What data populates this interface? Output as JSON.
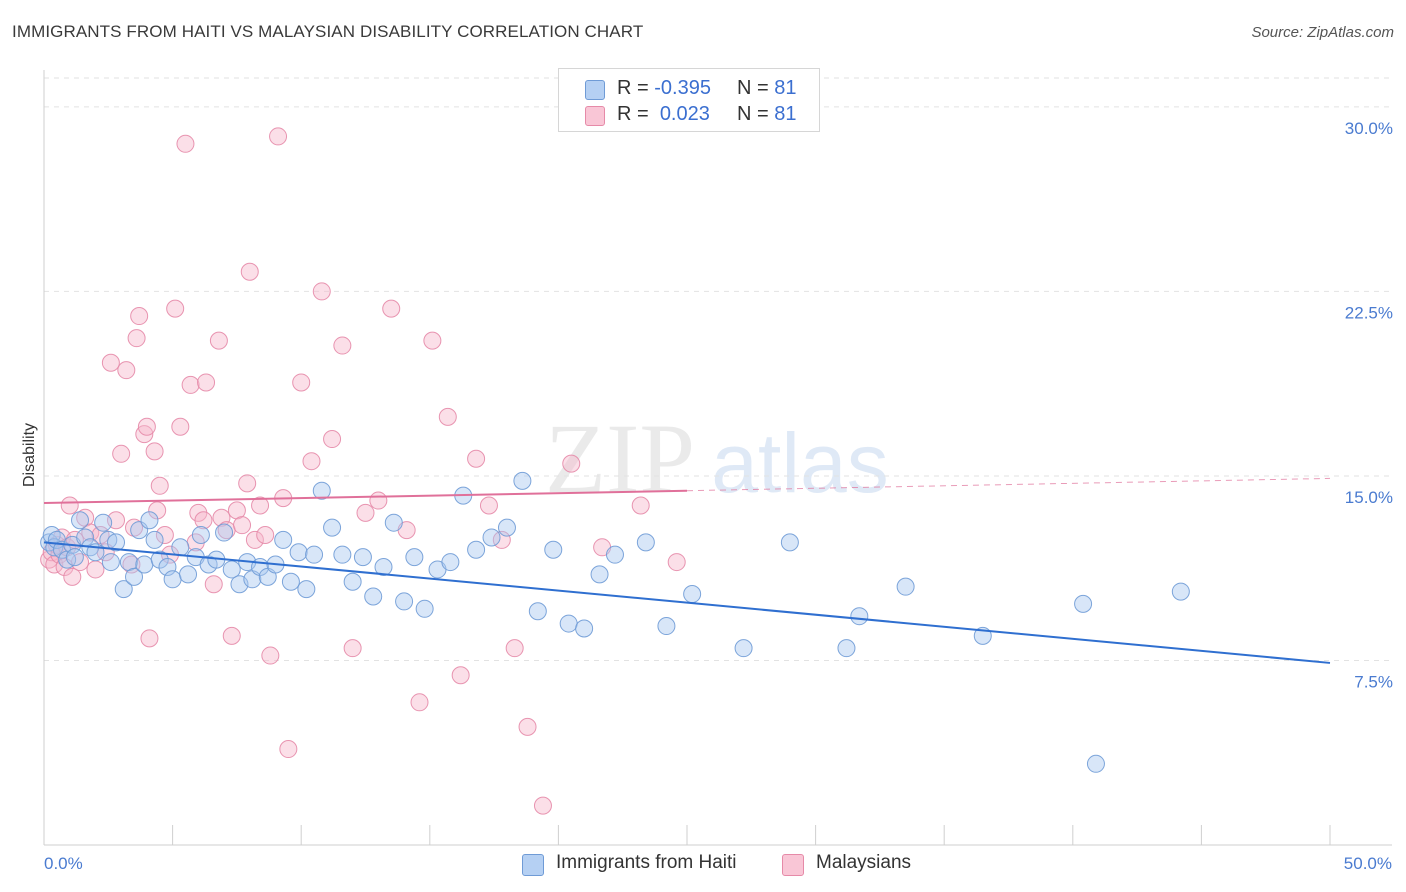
{
  "title": "IMMIGRANTS FROM HAITI VS MALAYSIAN DISABILITY CORRELATION CHART",
  "source": "Source: ZipAtlas.com",
  "watermark": {
    "zip": "ZIP",
    "atlas": "atlas"
  },
  "colors": {
    "haiti_fill": "#a8c8f0",
    "haiti_stroke": "#6f9bd6",
    "haiti_line": "#2f6fd0",
    "malay_fill": "#f6b8cb",
    "malay_stroke": "#e68aa8",
    "malay_line": "#e0709a",
    "grid": "#e2e2e2",
    "tick_text": "#4a7bd0"
  },
  "legend": {
    "rows": [
      {
        "r_label": "R =",
        "r_value": "-0.395",
        "n_label": "N =",
        "n_value": "81"
      },
      {
        "r_label": "R =",
        "r_value": "0.023",
        "n_label": "N =",
        "n_value": "81"
      }
    ]
  },
  "bottom_legend": {
    "haiti": "Immigrants from Haiti",
    "malay": "Malaysians"
  },
  "chart_data": {
    "type": "scatter",
    "title": "IMMIGRANTS FROM HAITI VS MALAYSIAN DISABILITY CORRELATION CHART",
    "xlabel": "",
    "ylabel": "Disability",
    "xlim": [
      0,
      50
    ],
    "ylim": [
      0,
      31.5
    ],
    "x_tick_labels": [
      "0.0%",
      "50.0%"
    ],
    "y_ticks": [
      7.5,
      15.0,
      22.5,
      30.0
    ],
    "y_tick_labels": [
      "7.5%",
      "15.0%",
      "22.5%",
      "30.0%"
    ],
    "grid": true,
    "legend_position": "top-center",
    "series": [
      {
        "name": "Immigrants from Haiti",
        "trend": {
          "x": [
            0,
            50
          ],
          "y": [
            12.3,
            7.4
          ]
        },
        "points": [
          [
            0.2,
            12.3
          ],
          [
            0.3,
            12.6
          ],
          [
            0.4,
            12.1
          ],
          [
            0.5,
            12.4
          ],
          [
            0.7,
            12.0
          ],
          [
            0.9,
            11.6
          ],
          [
            1.1,
            12.2
          ],
          [
            1.2,
            11.7
          ],
          [
            1.4,
            13.2
          ],
          [
            1.6,
            12.5
          ],
          [
            1.8,
            12.1
          ],
          [
            2.0,
            11.9
          ],
          [
            2.3,
            13.1
          ],
          [
            2.5,
            12.4
          ],
          [
            2.6,
            11.5
          ],
          [
            2.8,
            12.3
          ],
          [
            3.1,
            10.4
          ],
          [
            3.3,
            11.5
          ],
          [
            3.5,
            10.9
          ],
          [
            3.7,
            12.8
          ],
          [
            3.9,
            11.4
          ],
          [
            4.1,
            13.2
          ],
          [
            4.3,
            12.4
          ],
          [
            4.5,
            11.6
          ],
          [
            4.8,
            11.3
          ],
          [
            5.0,
            10.8
          ],
          [
            5.3,
            12.1
          ],
          [
            5.6,
            11.0
          ],
          [
            5.9,
            11.7
          ],
          [
            6.1,
            12.6
          ],
          [
            6.4,
            11.4
          ],
          [
            6.7,
            11.6
          ],
          [
            7.0,
            12.7
          ],
          [
            7.3,
            11.2
          ],
          [
            7.6,
            10.6
          ],
          [
            7.9,
            11.5
          ],
          [
            8.1,
            10.8
          ],
          [
            8.4,
            11.3
          ],
          [
            8.7,
            10.9
          ],
          [
            9.0,
            11.4
          ],
          [
            9.3,
            12.4
          ],
          [
            9.6,
            10.7
          ],
          [
            9.9,
            11.9
          ],
          [
            10.2,
            10.4
          ],
          [
            10.5,
            11.8
          ],
          [
            10.8,
            14.4
          ],
          [
            11.2,
            12.9
          ],
          [
            11.6,
            11.8
          ],
          [
            12.0,
            10.7
          ],
          [
            12.4,
            11.7
          ],
          [
            12.8,
            10.1
          ],
          [
            13.2,
            11.3
          ],
          [
            13.6,
            13.1
          ],
          [
            14.0,
            9.9
          ],
          [
            14.4,
            11.7
          ],
          [
            14.8,
            9.6
          ],
          [
            15.3,
            11.2
          ],
          [
            15.8,
            11.5
          ],
          [
            16.3,
            14.2
          ],
          [
            16.8,
            12.0
          ],
          [
            17.4,
            12.5
          ],
          [
            18.0,
            12.9
          ],
          [
            18.6,
            14.8
          ],
          [
            19.2,
            9.5
          ],
          [
            19.8,
            12.0
          ],
          [
            20.4,
            9.0
          ],
          [
            21.0,
            8.8
          ],
          [
            21.6,
            11.0
          ],
          [
            22.2,
            11.8
          ],
          [
            23.4,
            12.3
          ],
          [
            24.2,
            8.9
          ],
          [
            25.2,
            10.2
          ],
          [
            27.2,
            8.0
          ],
          [
            29.0,
            12.3
          ],
          [
            31.2,
            8.0
          ],
          [
            31.7,
            9.3
          ],
          [
            33.5,
            10.5
          ],
          [
            36.5,
            8.5
          ],
          [
            40.4,
            9.8
          ],
          [
            40.9,
            3.3
          ],
          [
            44.2,
            10.3
          ]
        ]
      },
      {
        "name": "Malaysians",
        "trend": {
          "x": [
            0,
            25
          ],
          "y": [
            13.9,
            14.4
          ],
          "dashed_x": [
            25,
            50
          ],
          "dashed_y": [
            14.4,
            14.9
          ]
        },
        "points": [
          [
            0.2,
            11.6
          ],
          [
            0.3,
            11.9
          ],
          [
            0.4,
            11.4
          ],
          [
            0.5,
            12.2
          ],
          [
            0.6,
            11.8
          ],
          [
            0.7,
            12.5
          ],
          [
            0.8,
            11.3
          ],
          [
            0.9,
            12.1
          ],
          [
            1.0,
            13.8
          ],
          [
            1.1,
            10.9
          ],
          [
            1.2,
            12.4
          ],
          [
            1.4,
            11.5
          ],
          [
            1.6,
            13.3
          ],
          [
            1.8,
            12.7
          ],
          [
            2.0,
            11.2
          ],
          [
            2.2,
            12.6
          ],
          [
            2.4,
            11.9
          ],
          [
            2.6,
            19.6
          ],
          [
            2.8,
            13.2
          ],
          [
            3.0,
            15.9
          ],
          [
            3.2,
            19.3
          ],
          [
            3.4,
            11.4
          ],
          [
            3.5,
            12.9
          ],
          [
            3.6,
            20.6
          ],
          [
            3.7,
            21.5
          ],
          [
            3.9,
            16.7
          ],
          [
            4.0,
            17.0
          ],
          [
            4.1,
            8.4
          ],
          [
            4.3,
            16.0
          ],
          [
            4.4,
            13.6
          ],
          [
            4.5,
            14.6
          ],
          [
            4.7,
            12.6
          ],
          [
            4.9,
            11.8
          ],
          [
            5.1,
            21.8
          ],
          [
            5.3,
            17.0
          ],
          [
            5.5,
            28.5
          ],
          [
            5.7,
            18.7
          ],
          [
            5.9,
            12.3
          ],
          [
            6.0,
            13.5
          ],
          [
            6.2,
            13.2
          ],
          [
            6.3,
            18.8
          ],
          [
            6.6,
            10.6
          ],
          [
            6.8,
            20.5
          ],
          [
            6.9,
            13.3
          ],
          [
            7.1,
            12.8
          ],
          [
            7.3,
            8.5
          ],
          [
            7.5,
            13.6
          ],
          [
            7.7,
            13.0
          ],
          [
            7.9,
            14.7
          ],
          [
            8.0,
            23.3
          ],
          [
            8.2,
            12.4
          ],
          [
            8.4,
            13.8
          ],
          [
            8.6,
            12.6
          ],
          [
            8.8,
            7.7
          ],
          [
            9.1,
            28.8
          ],
          [
            9.3,
            14.1
          ],
          [
            9.5,
            3.9
          ],
          [
            10.0,
            18.8
          ],
          [
            10.4,
            15.6
          ],
          [
            10.8,
            22.5
          ],
          [
            11.2,
            16.5
          ],
          [
            11.6,
            20.3
          ],
          [
            12.0,
            8.0
          ],
          [
            12.5,
            13.5
          ],
          [
            13.0,
            14.0
          ],
          [
            13.5,
            21.8
          ],
          [
            14.1,
            12.8
          ],
          [
            14.6,
            5.8
          ],
          [
            15.1,
            20.5
          ],
          [
            15.7,
            17.4
          ],
          [
            16.2,
            6.9
          ],
          [
            16.8,
            15.7
          ],
          [
            17.3,
            13.8
          ],
          [
            17.8,
            12.4
          ],
          [
            18.3,
            8.0
          ],
          [
            18.8,
            4.8
          ],
          [
            19.4,
            1.6
          ],
          [
            20.5,
            15.5
          ],
          [
            21.7,
            12.1
          ],
          [
            23.2,
            13.8
          ],
          [
            24.6,
            11.5
          ]
        ]
      }
    ]
  }
}
